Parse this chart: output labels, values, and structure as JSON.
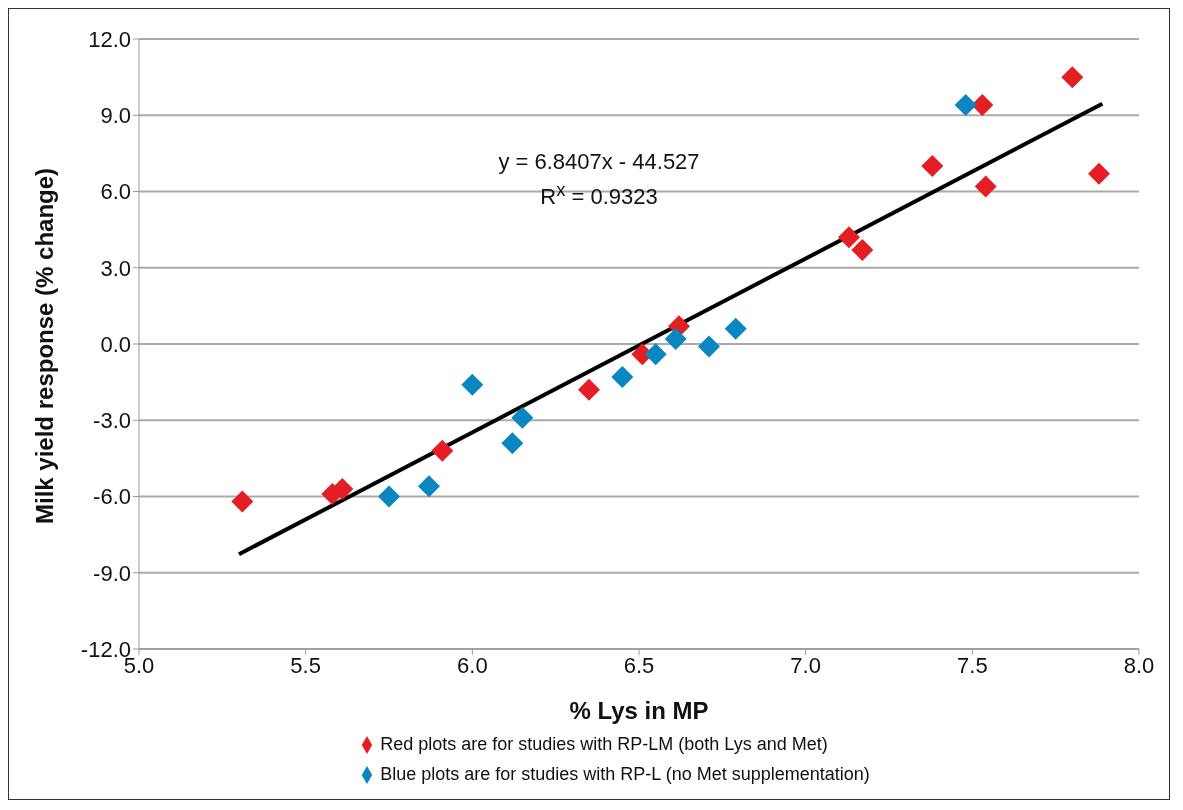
{
  "chart_data": {
    "type": "scatter",
    "xlabel": "% Lys in MP",
    "ylabel": "Milk yield response (% change)",
    "annotations": [
      "y = 6.8407x - 44.527",
      "R$^{x}$ = 0.9323"
    ],
    "xlim": [
      5.0,
      8.0
    ],
    "xticks": [
      {
        "value": 5.0,
        "label": "5.0"
      },
      {
        "value": 5.5,
        "label": "5.5"
      },
      {
        "value": 6.0,
        "label": "6.0"
      },
      {
        "value": 6.5,
        "label": "6.5"
      },
      {
        "value": 7.0,
        "label": "7.0"
      },
      {
        "value": 7.5,
        "label": "7.5"
      },
      {
        "value": 8.0,
        "label": "8.0"
      }
    ],
    "ylim": [
      -12,
      12
    ],
    "yticks": [
      {
        "value": -12,
        "label": "-12.0"
      },
      {
        "value": -9,
        "label": "-9.0"
      },
      {
        "value": -6,
        "label": "-6.0"
      },
      {
        "value": -3,
        "label": "-3.0"
      },
      {
        "value": 0,
        "label": "0.0"
      },
      {
        "value": 3,
        "label": "3.0"
      },
      {
        "value": 6,
        "label": "6.0"
      },
      {
        "value": 9,
        "label": "9.0"
      },
      {
        "value": 12,
        "label": "12.0"
      }
    ],
    "grid": "y",
    "legend": "bottom",
    "series": [
      {
        "name": "Red plots are for studies with RP-LM (both Lys and Met)",
        "color": "#e31e24",
        "marker": "diamond",
        "x": [
          5.31,
          5.58,
          5.61,
          5.91,
          6.35,
          6.51,
          6.62,
          7.13,
          7.17,
          7.38,
          7.53,
          7.54,
          7.8,
          7.88
        ],
        "values": [
          -6.2,
          -5.9,
          -5.7,
          -4.2,
          -1.8,
          -0.4,
          0.7,
          4.2,
          3.7,
          7.0,
          9.4,
          6.2,
          10.5,
          6.7
        ]
      },
      {
        "name": "Blue plots are for studies with RP-L (no Met supplementation)",
        "color": "#0a86c0",
        "marker": "diamond",
        "x": [
          5.75,
          5.87,
          6.0,
          6.12,
          6.15,
          6.45,
          6.55,
          6.61,
          6.71,
          6.79,
          7.48
        ],
        "values": [
          -6.0,
          -5.6,
          -1.6,
          -3.9,
          -2.9,
          -1.3,
          -0.4,
          0.2,
          -0.1,
          0.6,
          9.4
        ]
      },
      {
        "type": "line",
        "color": "#000000",
        "x": [
          5.3,
          7.89
        ],
        "values": [
          -8.27,
          9.45
        ]
      }
    ]
  }
}
